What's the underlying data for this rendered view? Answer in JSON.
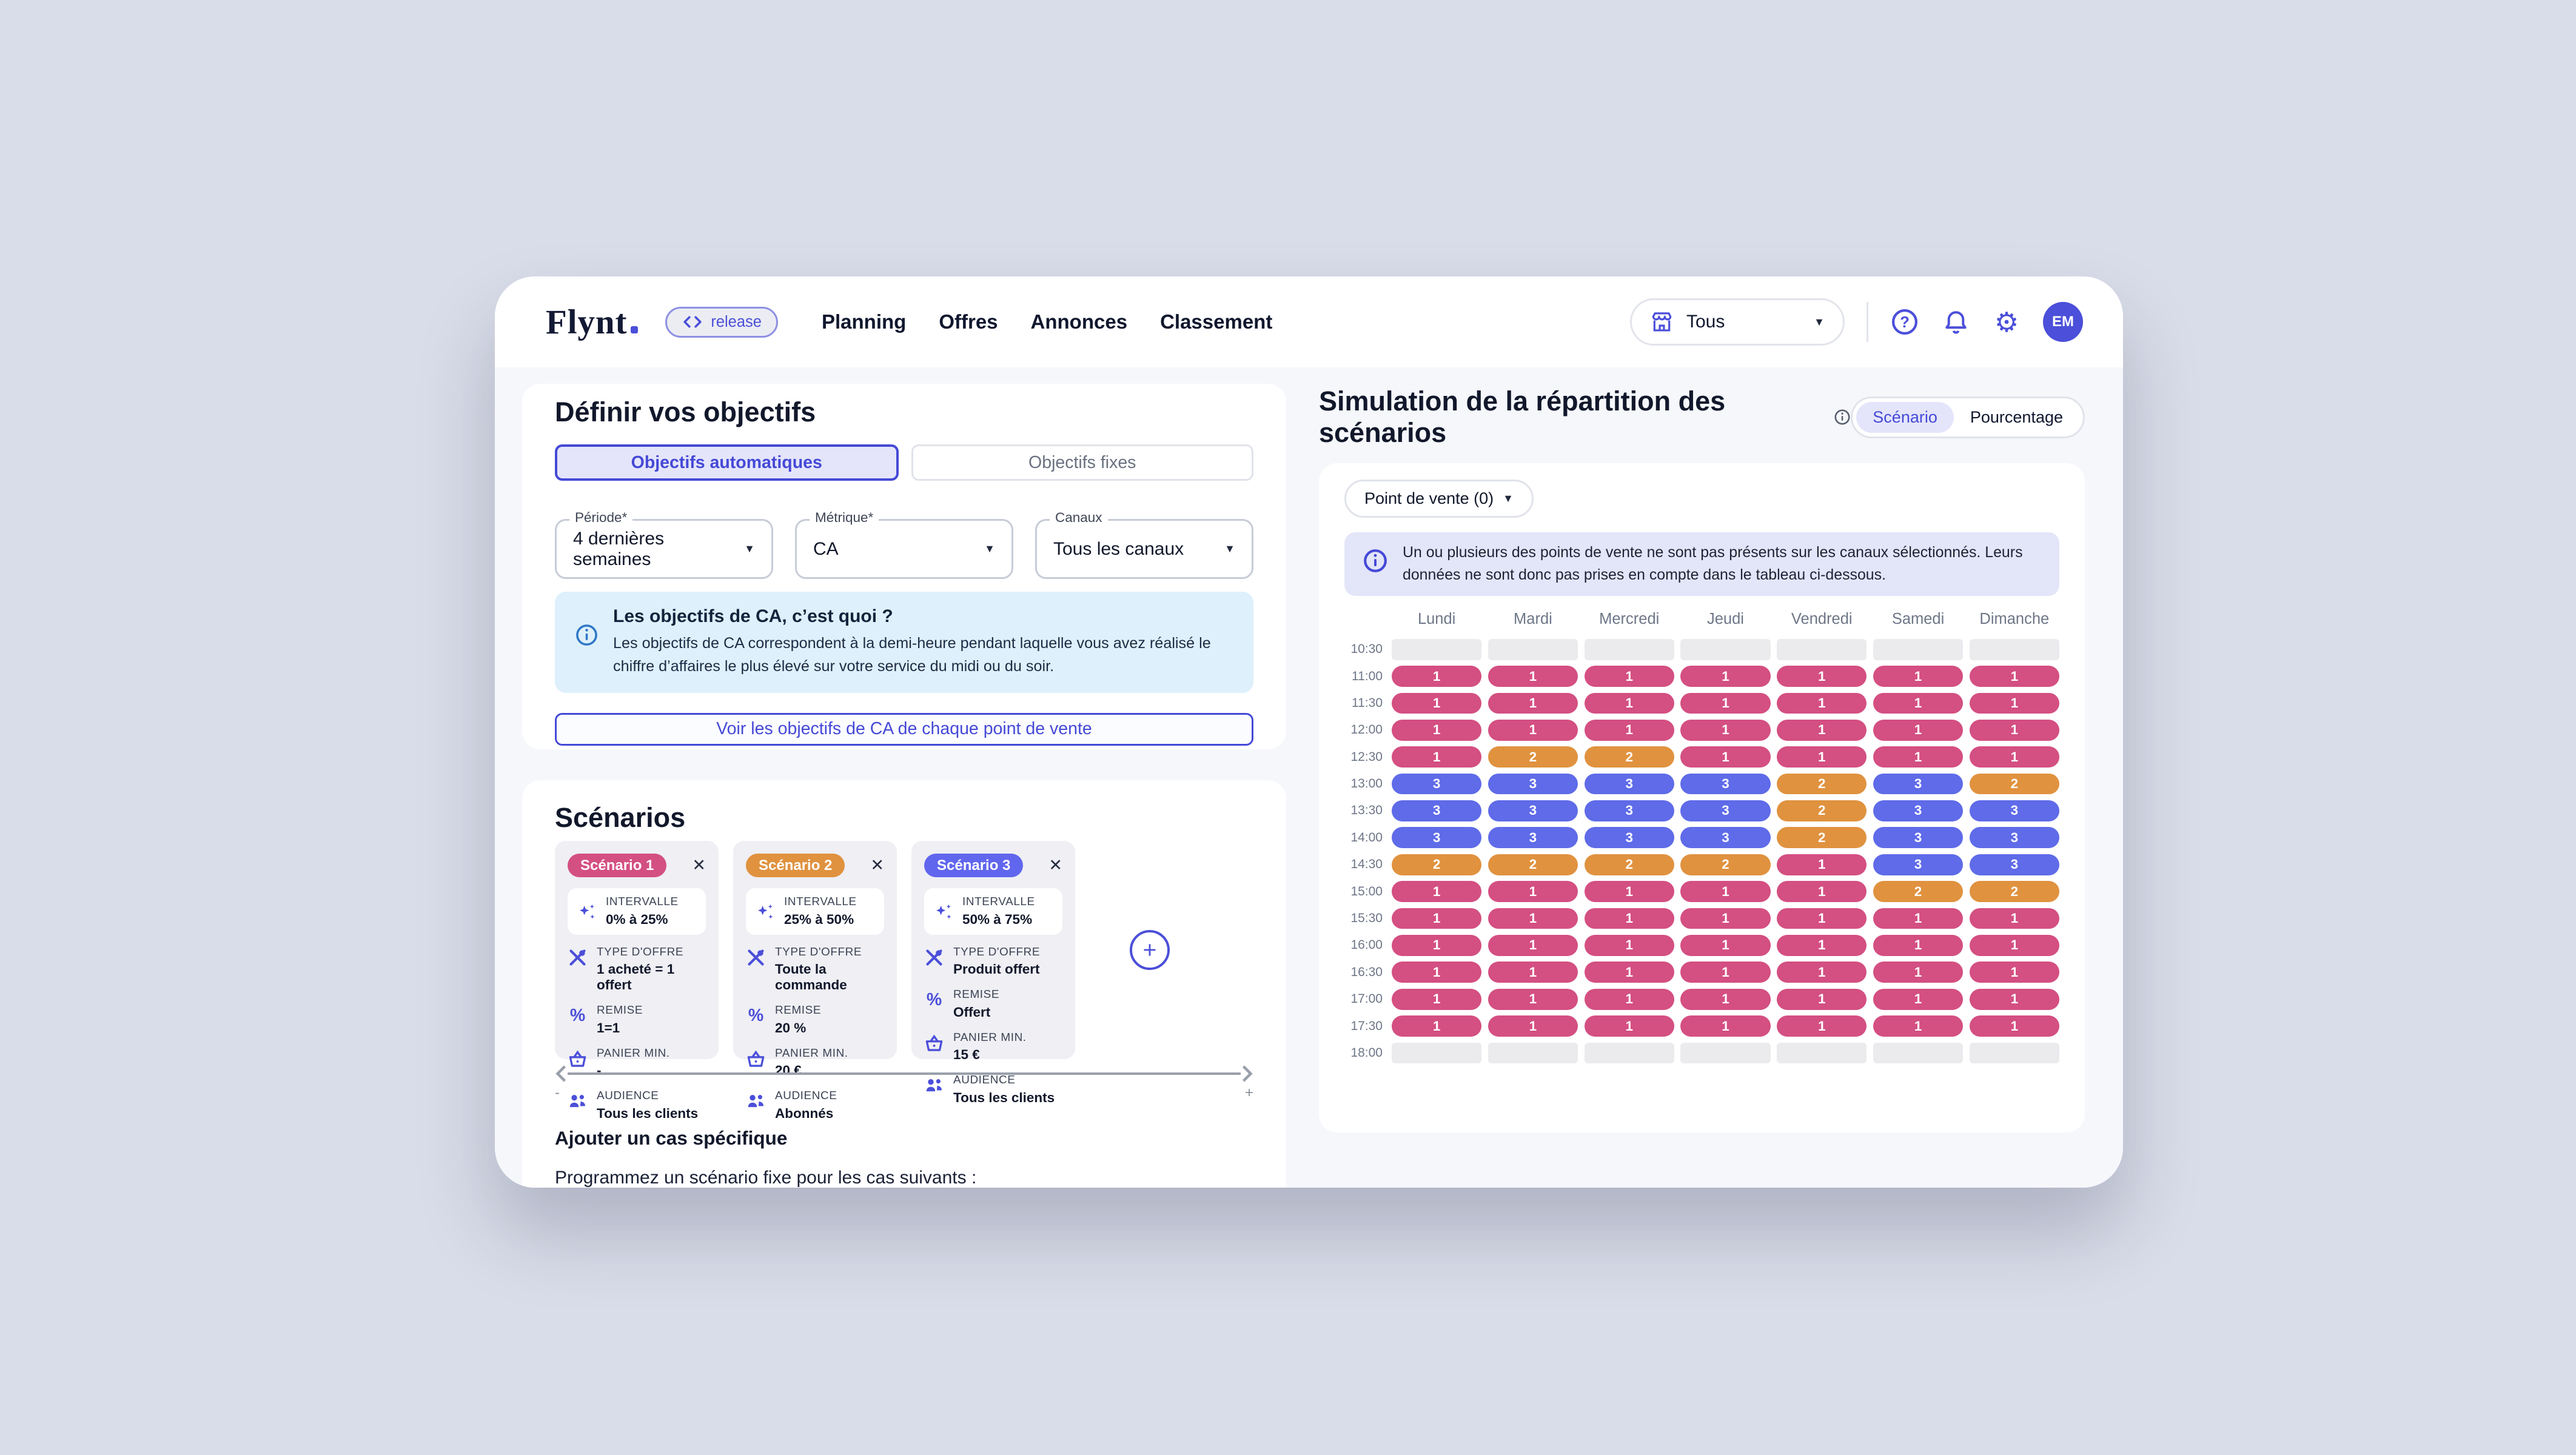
{
  "header": {
    "logo": "Flynt",
    "release_badge": "release",
    "nav": [
      "Planning",
      "Offres",
      "Annonces",
      "Classement"
    ],
    "store_select": {
      "value": "Tous"
    },
    "avatar_initials": "EM"
  },
  "objectives": {
    "title": "Définir vos objectifs",
    "tabs": [
      {
        "label": "Objectifs automatiques",
        "selected": true
      },
      {
        "label": "Objectifs fixes",
        "selected": false
      }
    ],
    "fields": [
      {
        "label": "Période*",
        "value": "4 dernières semaines"
      },
      {
        "label": "Métrique*",
        "value": "CA"
      },
      {
        "label": "Canaux",
        "value": "Tous les canaux"
      }
    ],
    "info_title": "Les objectifs de CA, c’est quoi ?",
    "info_body": "Les objectifs de CA correspondent à la demi-heure pendant laquelle vous avez réalisé le chiffre d’affaires le plus élevé sur votre service du midi ou du soir.",
    "cta": "Voir les objectifs de CA de chaque point de vente"
  },
  "scenarios": {
    "title": "Scénarios",
    "field_labels": {
      "intervalle": "INTERVALLE",
      "type_offre": "TYPE D'OFFRE",
      "remise": "REMISE",
      "panier_min": "PANIER MIN.",
      "audience": "AUDIENCE"
    },
    "cards": [
      {
        "badge": "Scénario 1",
        "color": "#d44f82",
        "intervalle": "0% à 25%",
        "type_offre": "1 acheté = 1 offert",
        "remise": "1=1",
        "panier_min": "-",
        "audience": "Tous les clients"
      },
      {
        "badge": "Scénario 2",
        "color": "#e0923f",
        "intervalle": "25% à 50%",
        "type_offre": "Toute la commande",
        "remise": "20 %",
        "panier_min": "20 €",
        "audience": "Abonnés"
      },
      {
        "badge": "Scénario 3",
        "color": "#6166ee",
        "intervalle": "50% à 75%",
        "type_offre": "Produit offert",
        "remise": "Offert",
        "panier_min": "15 €",
        "audience": "Tous les clients"
      }
    ],
    "zoom_minus": "-",
    "zoom_plus": "+",
    "add_case_title": "Ajouter un cas spécifique",
    "add_case_body": "Programmez un scénario fixe pour les cas suivants :"
  },
  "simulation": {
    "title": "Simulation de la répartition des scénarios",
    "toggle": [
      {
        "label": "Scénario",
        "selected": true
      },
      {
        "label": "Pourcentage",
        "selected": false
      }
    ],
    "filter_chip": "Point de vente (0)",
    "alert": "Un ou plusieurs des points de vente ne sont pas présents sur les canaux sélectionnés. Leurs données ne sont donc pas prises en compte dans le tableau ci-dessous.",
    "grid": {
      "type": "heatmap",
      "columns": [
        "Lundi",
        "Mardi",
        "Mercredi",
        "Jeudi",
        "Vendredi",
        "Samedi",
        "Dimanche"
      ],
      "times": [
        "10:30",
        "11:00",
        "11:30",
        "12:00",
        "12:30",
        "13:00",
        "13:30",
        "14:00",
        "14:30",
        "15:00",
        "15:30",
        "16:00",
        "16:30",
        "17:00",
        "17:30",
        "18:00"
      ],
      "values": [
        [
          0,
          0,
          0,
          0,
          0,
          0,
          0
        ],
        [
          1,
          1,
          1,
          1,
          1,
          1,
          1
        ],
        [
          1,
          1,
          1,
          1,
          1,
          1,
          1
        ],
        [
          1,
          1,
          1,
          1,
          1,
          1,
          1
        ],
        [
          1,
          2,
          2,
          1,
          1,
          1,
          1
        ],
        [
          3,
          3,
          3,
          3,
          2,
          3,
          2
        ],
        [
          3,
          3,
          3,
          3,
          2,
          3,
          3
        ],
        [
          3,
          3,
          3,
          3,
          2,
          3,
          3
        ],
        [
          2,
          2,
          2,
          2,
          1,
          3,
          3
        ],
        [
          1,
          1,
          1,
          1,
          1,
          2,
          2
        ],
        [
          1,
          1,
          1,
          1,
          1,
          1,
          1
        ],
        [
          1,
          1,
          1,
          1,
          1,
          1,
          1
        ],
        [
          1,
          1,
          1,
          1,
          1,
          1,
          1
        ],
        [
          1,
          1,
          1,
          1,
          1,
          1,
          1
        ],
        [
          1,
          1,
          1,
          1,
          1,
          1,
          1
        ],
        [
          0,
          0,
          0,
          0,
          0,
          0,
          0
        ]
      ],
      "legend": {
        "1": "#d44f82",
        "2": "#e0923f",
        "3": "#5f6be8",
        "empty": "#ebebee"
      }
    }
  },
  "colors": {
    "accent": "#4549d6",
    "icon_indigo": "#4b4fd9",
    "scenario1_pink": "#d44f82",
    "scenario2_orange": "#e0923f",
    "scenario3_blue": "#5f6be8",
    "page_bg": "#f5f7fb",
    "desktop_bg": "#d9dde9",
    "info_blue_bg": "#def0fb",
    "alert_lavender_bg": "#e3e5f8"
  }
}
